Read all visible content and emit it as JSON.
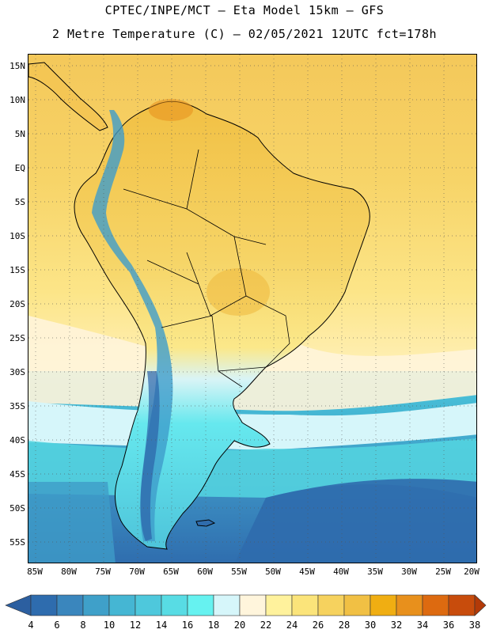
{
  "header": {
    "line1": "CPTEC/INPE/MCT –  Eta Model 15km – GFS",
    "line2": "2 Metre Temperature (C) – 02/05/2021 12UTC fct=178h"
  },
  "map": {
    "lat_labels": [
      "15N",
      "10N",
      "5N",
      "EQ",
      "5S",
      "10S",
      "15S",
      "20S",
      "25S",
      "30S",
      "35S",
      "40S",
      "45S",
      "50S",
      "55S"
    ],
    "lon_labels": [
      "85W",
      "80W",
      "75W",
      "70W",
      "65W",
      "60W",
      "55W",
      "50W",
      "45W",
      "40W",
      "35W",
      "30W",
      "25W",
      "20W"
    ]
  },
  "colorbar": {
    "labels": [
      "4",
      "6",
      "8",
      "10",
      "12",
      "14",
      "16",
      "18",
      "20",
      "22",
      "24",
      "26",
      "28",
      "30",
      "32",
      "34",
      "36",
      "38"
    ],
    "colors": [
      "#2e6cae",
      "#3a86bd",
      "#3fa0c9",
      "#45b6d3",
      "#4ec8dc",
      "#58dce4",
      "#66f2f0",
      "#d6f6fa",
      "#fff5dc",
      "#fff29c",
      "#fbe47a",
      "#f6d25e",
      "#f1c044",
      "#f0ae12",
      "#e8901c",
      "#dd6a10",
      "#c84c0c"
    ],
    "under_color": "#2c5fa0",
    "over_color": "#b33a08"
  }
}
